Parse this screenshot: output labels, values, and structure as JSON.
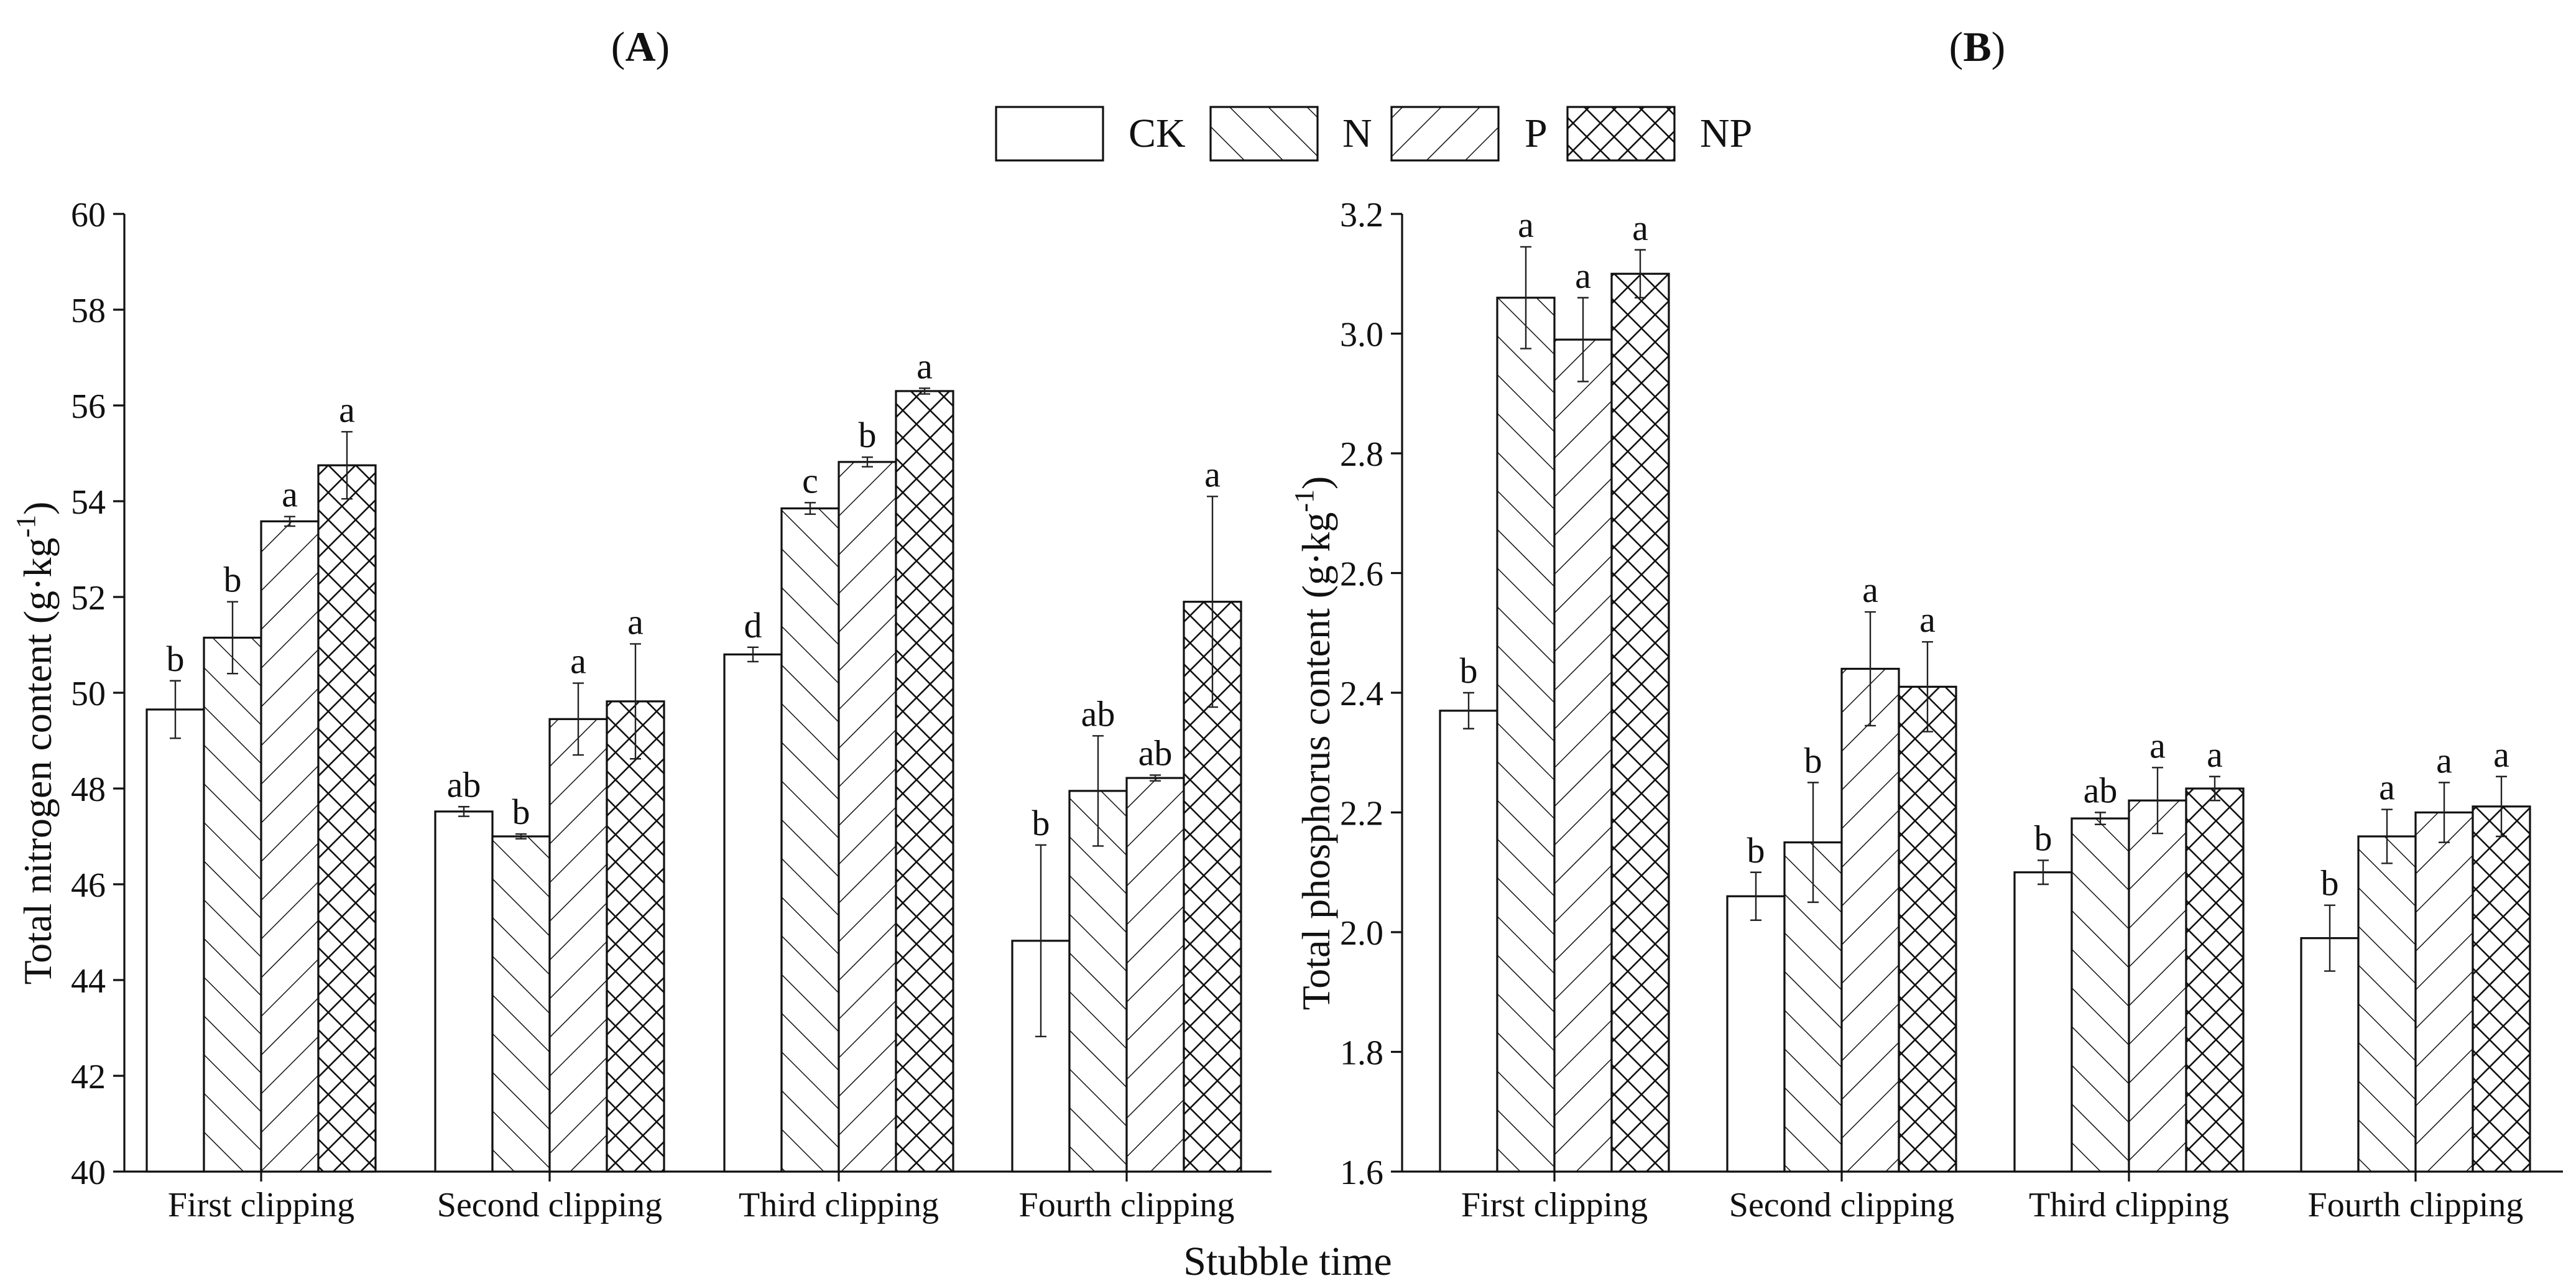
{
  "chart_data": [
    {
      "type": "bar",
      "panel_label": "(A)",
      "panel_letter": "A",
      "title": "",
      "xlabel": "",
      "ylabel": "Total nitrogen content (g·kg-1)",
      "ylabel_parts": {
        "main": "Total nitrogen content (g·kg",
        "sup": "-1",
        "end": ")"
      },
      "ylim": [
        40,
        60
      ],
      "yticks": [
        40,
        42,
        44,
        46,
        48,
        50,
        52,
        54,
        56,
        58,
        60
      ],
      "ytick_labels": [
        "40",
        "42",
        "44",
        "46",
        "48",
        "50",
        "52",
        "54",
        "56",
        "58",
        "60"
      ],
      "categories": [
        "First clipping",
        "Second clipping",
        "Third clipping",
        "Fourth clipping"
      ],
      "series": [
        {
          "name": "CK",
          "values": [
            49.65,
            47.52,
            50.8,
            44.82
          ],
          "errors": [
            0.6,
            0.1,
            0.15,
            2.0
          ],
          "letters": [
            "b",
            "ab",
            "d",
            "b"
          ]
        },
        {
          "name": "N",
          "values": [
            51.15,
            47.0,
            53.85,
            47.95
          ],
          "errors": [
            0.75,
            0.05,
            0.12,
            1.15
          ],
          "letters": [
            "b",
            "b",
            "c",
            "ab"
          ]
        },
        {
          "name": "P",
          "values": [
            53.58,
            49.45,
            54.82,
            48.22
          ],
          "errors": [
            0.1,
            0.75,
            0.1,
            0.06
          ],
          "letters": [
            "a",
            "a",
            "b",
            "ab"
          ]
        },
        {
          "name": "NP",
          "values": [
            54.75,
            49.82,
            56.3,
            51.9
          ],
          "errors": [
            0.7,
            1.2,
            0.06,
            2.2
          ],
          "letters": [
            "a",
            "a",
            "a",
            "a"
          ]
        }
      ]
    },
    {
      "type": "bar",
      "panel_label": "(B)",
      "panel_letter": "B",
      "title": "",
      "xlabel": "",
      "ylabel": "Total phosphorus content (g·kg-1)",
      "ylabel_parts": {
        "main": "Total phosphorus content (g·kg",
        "sup": "-1",
        "end": ")"
      },
      "ylim": [
        1.6,
        3.2
      ],
      "yticks": [
        1.6,
        1.8,
        2.0,
        2.2,
        2.4,
        2.6,
        2.8,
        3.0,
        3.2
      ],
      "ytick_labels": [
        "1.6",
        "1.8",
        "2.0",
        "2.2",
        "2.4",
        "2.6",
        "2.8",
        "3.0",
        "3.2"
      ],
      "categories": [
        "First clipping",
        "Second clipping",
        "Third clipping",
        "Fourth clipping"
      ],
      "series": [
        {
          "name": "CK",
          "values": [
            2.37,
            2.06,
            2.1,
            1.99
          ],
          "errors": [
            0.03,
            0.04,
            0.02,
            0.055
          ],
          "letters": [
            "b",
            "b",
            "b",
            "b"
          ]
        },
        {
          "name": "N",
          "values": [
            3.06,
            2.15,
            2.19,
            2.16
          ],
          "errors": [
            0.085,
            0.1,
            0.01,
            0.045
          ],
          "letters": [
            "a",
            "b",
            "ab",
            "a"
          ]
        },
        {
          "name": "P",
          "values": [
            2.99,
            2.44,
            2.22,
            2.2
          ],
          "errors": [
            0.07,
            0.095,
            0.055,
            0.05
          ],
          "letters": [
            "a",
            "a",
            "a",
            "a"
          ]
        },
        {
          "name": "NP",
          "values": [
            3.1,
            2.41,
            2.24,
            2.21
          ],
          "errors": [
            0.04,
            0.075,
            0.02,
            0.05
          ],
          "letters": [
            "a",
            "a",
            "a",
            "a"
          ]
        }
      ]
    }
  ],
  "legend": {
    "items": [
      "CK",
      "N",
      "P",
      "NP"
    ],
    "placement": "top-center"
  },
  "shared_xlabel": "Stubble time"
}
